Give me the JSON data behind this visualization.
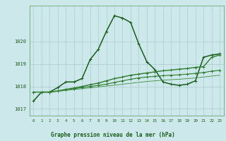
{
  "title": "Graphe pression niveau de la mer (hPa)",
  "bg_color": "#cce8ea",
  "grid_color": "#aacccc",
  "line_color_dark": "#1a5c1a",
  "ylim": [
    1016.7,
    1021.6
  ],
  "yticks": [
    1017,
    1018,
    1019,
    1020
  ],
  "xlim": [
    -0.5,
    23.5
  ],
  "xticks": [
    0,
    1,
    2,
    3,
    4,
    5,
    6,
    7,
    8,
    9,
    10,
    11,
    12,
    13,
    14,
    15,
    16,
    17,
    18,
    19,
    20,
    21,
    22,
    23
  ],
  "series": [
    {
      "x": [
        0,
        1,
        2,
        3,
        4,
        5,
        6,
        7,
        8,
        9,
        10,
        11,
        12,
        13,
        14,
        15,
        16,
        17,
        18,
        19,
        20,
        21,
        22,
        23
      ],
      "y": [
        1017.35,
        1017.75,
        1017.75,
        1017.95,
        1018.2,
        1018.2,
        1018.35,
        1019.2,
        1019.65,
        1020.45,
        1021.15,
        1021.05,
        1020.85,
        1019.9,
        1019.1,
        1018.75,
        1018.2,
        1018.1,
        1018.05,
        1018.1,
        1018.25,
        1019.3,
        1019.4,
        1019.45
      ],
      "color": "#1a5c1a",
      "lw": 1.1,
      "marker": "+"
    },
    {
      "x": [
        0,
        1,
        2,
        3,
        4,
        5,
        6,
        7,
        8,
        9,
        10,
        11,
        12,
        13,
        14,
        15,
        16,
        17,
        18,
        19,
        20,
        21,
        22,
        23
      ],
      "y": [
        1017.75,
        1017.75,
        1017.75,
        1017.8,
        1017.87,
        1017.93,
        1018.0,
        1018.08,
        1018.15,
        1018.25,
        1018.35,
        1018.42,
        1018.5,
        1018.55,
        1018.6,
        1018.65,
        1018.7,
        1018.73,
        1018.77,
        1018.8,
        1018.85,
        1018.88,
        1019.3,
        1019.4
      ],
      "color": "#2d7a2d",
      "lw": 1.0,
      "marker": "+"
    },
    {
      "x": [
        0,
        1,
        2,
        3,
        4,
        5,
        6,
        7,
        8,
        9,
        10,
        11,
        12,
        13,
        14,
        15,
        16,
        17,
        18,
        19,
        20,
        21,
        22,
        23
      ],
      "y": [
        1017.75,
        1017.75,
        1017.75,
        1017.8,
        1017.85,
        1017.9,
        1017.95,
        1018.0,
        1018.05,
        1018.1,
        1018.18,
        1018.25,
        1018.32,
        1018.38,
        1018.42,
        1018.45,
        1018.48,
        1018.5,
        1018.52,
        1018.55,
        1018.58,
        1018.62,
        1018.68,
        1018.72
      ],
      "color": "#2d7a2d",
      "lw": 0.8,
      "marker": "+"
    },
    {
      "x": [
        0,
        1,
        2,
        3,
        4,
        5,
        6,
        7,
        8,
        9,
        10,
        11,
        12,
        13,
        14,
        15,
        16,
        17,
        18,
        19,
        20,
        21,
        22,
        23
      ],
      "y": [
        1017.75,
        1017.75,
        1017.75,
        1017.78,
        1017.82,
        1017.86,
        1017.9,
        1017.94,
        1017.98,
        1018.02,
        1018.06,
        1018.1,
        1018.14,
        1018.18,
        1018.22,
        1018.25,
        1018.28,
        1018.3,
        1018.32,
        1018.35,
        1018.38,
        1018.42,
        1018.46,
        1018.5
      ],
      "color": "#3d8c3d",
      "lw": 0.6,
      "marker": null
    }
  ],
  "xlabel_bg": "#2d5a27",
  "xlabel_fg": "#ffffff",
  "figsize": [
    3.2,
    2.0
  ],
  "dpi": 100
}
